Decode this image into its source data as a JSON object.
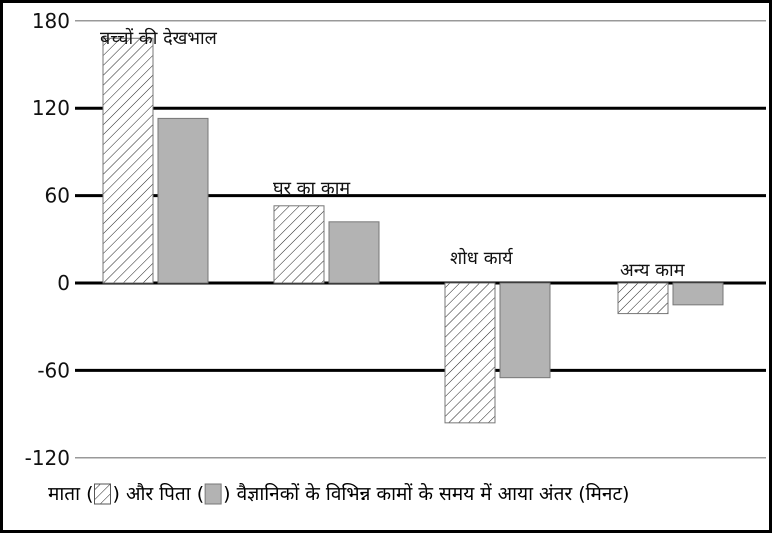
{
  "chart_data": {
    "type": "bar",
    "categories": [
      "बच्चों की देखभाल",
      "घर का काम",
      "शोध कार्य",
      "अन्य काम"
    ],
    "series": [
      {
        "name": "माता",
        "pattern": "hatched",
        "values": [
          168,
          53,
          -96,
          -21
        ]
      },
      {
        "name": "पिता",
        "pattern": "solid",
        "color": "#b3b3b3",
        "values": [
          113,
          42,
          -65,
          -15
        ]
      }
    ],
    "yticks": [
      180,
      120,
      60,
      0,
      -60,
      -120
    ],
    "ylim": [
      -120,
      180
    ],
    "grid": true,
    "caption": {
      "part1": "माता (",
      "part2": ") और पिता (",
      "part3": ") वैज्ञानिकों के विभिन्न कामों के समय में आया अंतर (मिनट)"
    }
  }
}
